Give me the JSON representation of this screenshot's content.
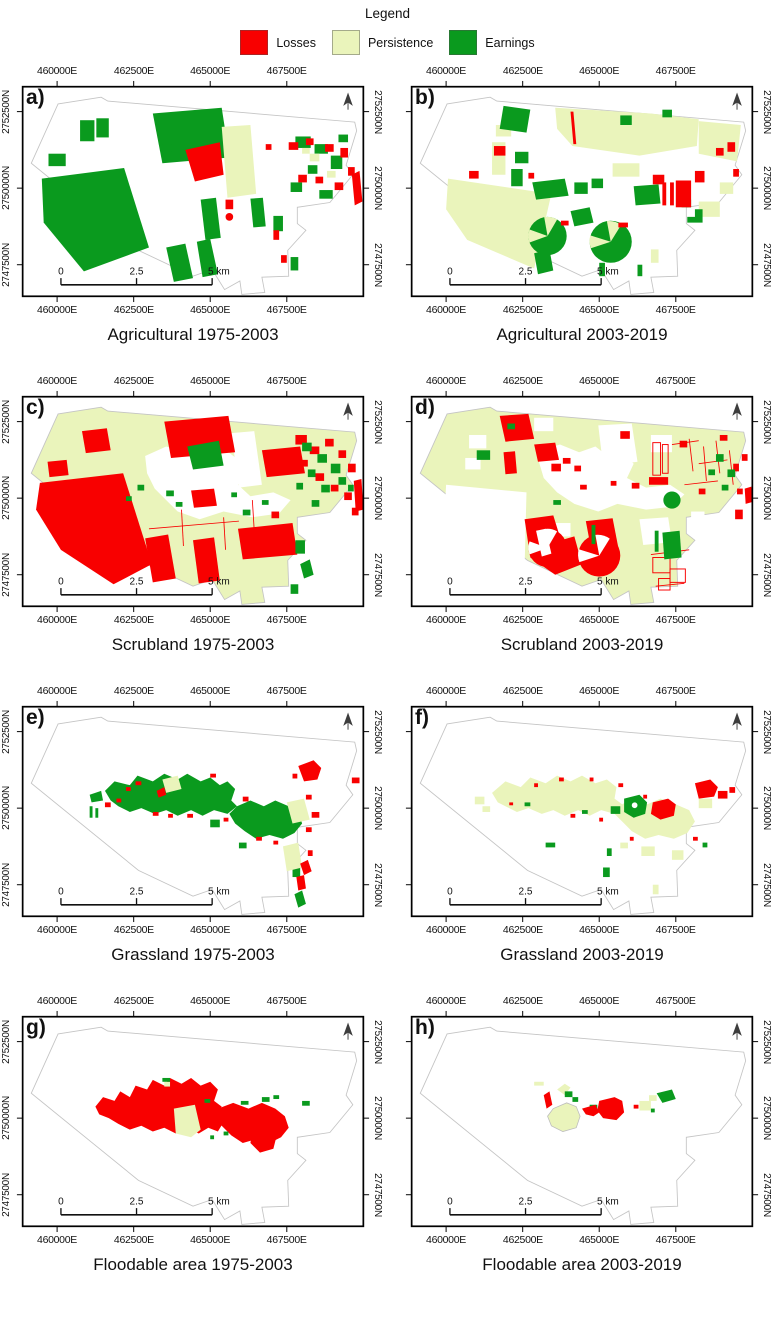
{
  "legend": {
    "title": "Legend",
    "items": [
      {
        "key": "losses",
        "label": "Losses",
        "color": "#f80000"
      },
      {
        "key": "persistence",
        "label": "Persistence",
        "color": "#eaf4bb"
      },
      {
        "key": "earnings",
        "label": "Earnings",
        "color": "#0a9a1e"
      }
    ]
  },
  "axes": {
    "x_ticks": [
      "460000E",
      "462500E",
      "465000E",
      "467500E"
    ],
    "y_ticks": [
      "2752500N",
      "2750000N",
      "2747500N"
    ]
  },
  "scalebar": {
    "start": "0",
    "mid": "2.5",
    "end": "5 km"
  },
  "panels": [
    {
      "id": "a)",
      "caption": "Agricultural 1975-2003",
      "base": "white"
    },
    {
      "id": "b)",
      "caption": "Agricultural 2003-2019",
      "base": "white"
    },
    {
      "id": "c)",
      "caption": "Scrubland 1975-2003",
      "base": "persistence"
    },
    {
      "id": "d)",
      "caption": "Scrubland 2003-2019",
      "base": "persistence"
    },
    {
      "id": "e)",
      "caption": "Grassland 1975-2003",
      "base": "white"
    },
    {
      "id": "f)",
      "caption": "Grassland 2003-2019",
      "base": "white"
    },
    {
      "id": "g)",
      "caption": "Floodable area 1975-2003",
      "base": "white"
    },
    {
      "id": "h)",
      "caption": "Floodable area 2003-2019",
      "base": "white"
    }
  ]
}
